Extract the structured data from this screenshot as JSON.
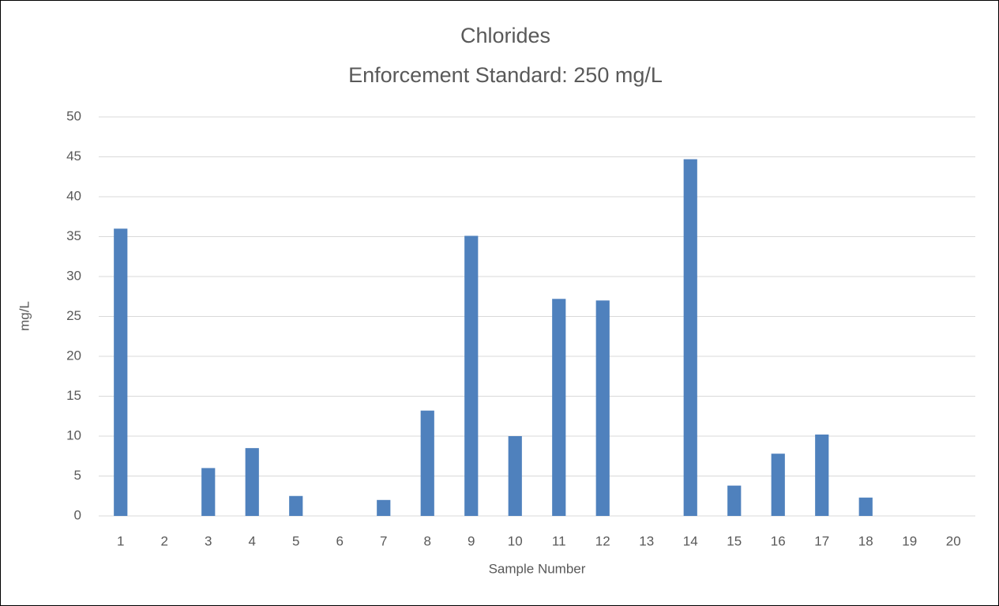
{
  "chart_data": {
    "type": "bar",
    "title": "Chlorides",
    "subtitle": "Enforcement Standard: 250 mg/L",
    "x_label": "Sample Number",
    "y_label": "mg/L",
    "categories": [
      "1",
      "2",
      "3",
      "4",
      "5",
      "6",
      "7",
      "8",
      "9",
      "10",
      "11",
      "12",
      "13",
      "14",
      "15",
      "16",
      "17",
      "18",
      "19",
      "20"
    ],
    "values": [
      36,
      0,
      6,
      8.5,
      2.5,
      0,
      2,
      13.2,
      35.1,
      10,
      27.2,
      27,
      0,
      44.7,
      3.8,
      7.8,
      10.2,
      2.3,
      0,
      0
    ],
    "color": "#4f81bd",
    "ylim": [
      0,
      50
    ],
    "yticks": [
      0,
      5,
      10,
      15,
      20,
      25,
      30,
      35,
      40,
      45,
      50
    ],
    "grid": true
  }
}
